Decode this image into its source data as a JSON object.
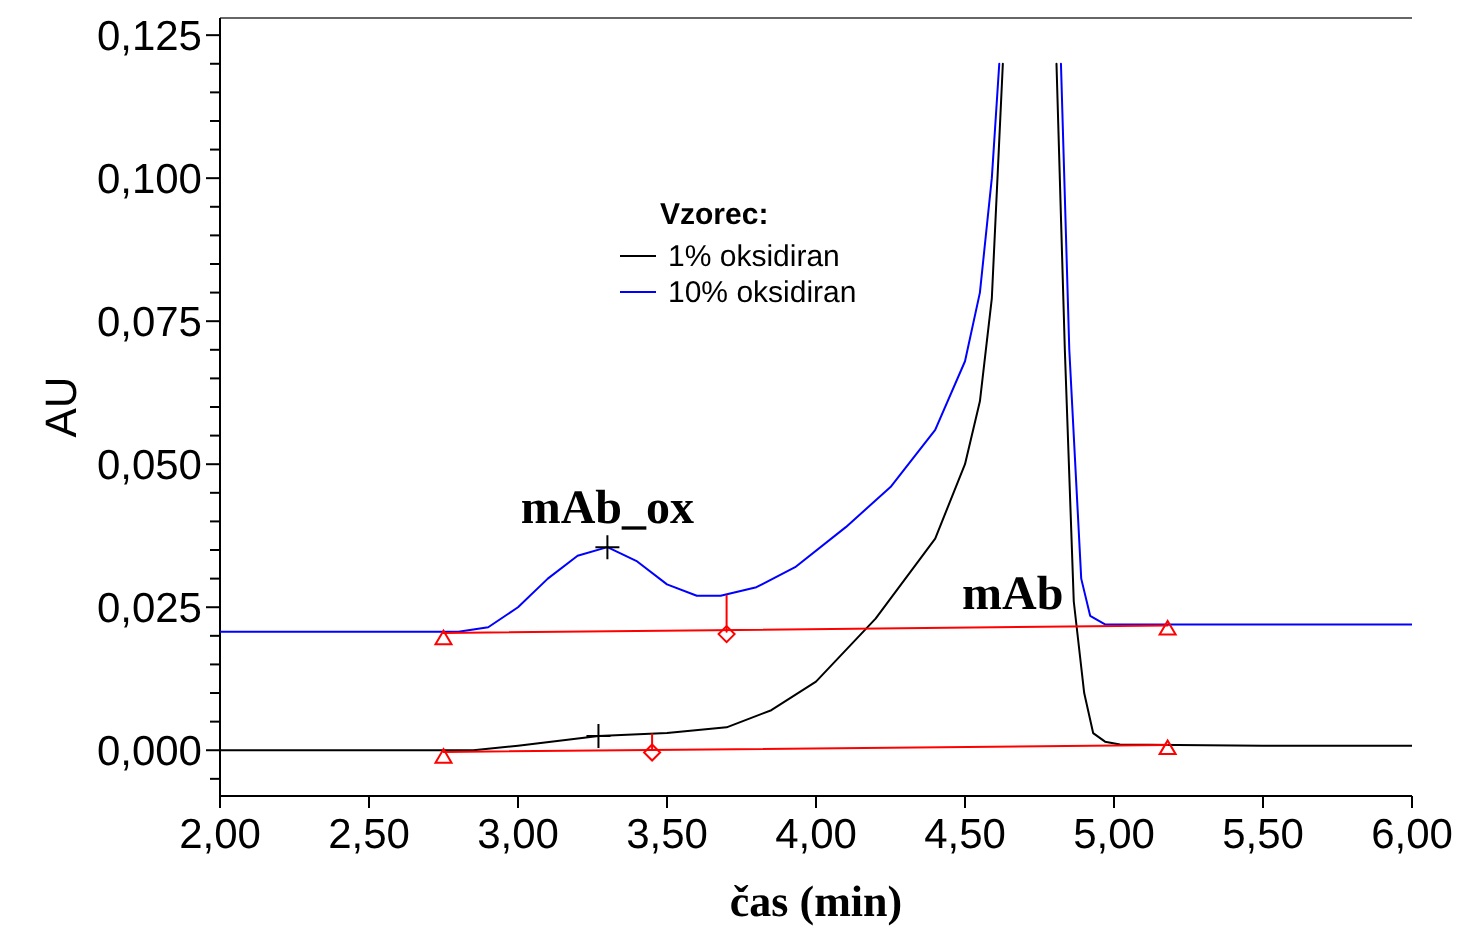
{
  "chart_data": {
    "type": "line",
    "xlabel": "čas (min)",
    "ylabel": "AU",
    "legend_title": "Vzorec:",
    "legend": "top",
    "grid": false,
    "marker": "none",
    "line_style": "solid",
    "xlim": [
      2.0,
      6.0
    ],
    "ylim": [
      -0.008,
      0.128
    ],
    "xticks": [
      {
        "value": 2.0,
        "label": "2,00"
      },
      {
        "value": 2.5,
        "label": "2,50"
      },
      {
        "value": 3.0,
        "label": "3,00"
      },
      {
        "value": 3.5,
        "label": "3,50"
      },
      {
        "value": 4.0,
        "label": "4,00"
      },
      {
        "value": 4.5,
        "label": "4,50"
      },
      {
        "value": 5.0,
        "label": "5,00"
      },
      {
        "value": 5.5,
        "label": "5,50"
      },
      {
        "value": 6.0,
        "label": "6,00"
      }
    ],
    "yticks": [
      {
        "value": -0.005,
        "label": null
      },
      {
        "value": 0,
        "label": "0,000"
      },
      {
        "value": 0.005,
        "label": null
      },
      {
        "value": 0.01,
        "label": null
      },
      {
        "value": 0.015,
        "label": null
      },
      {
        "value": 0.02,
        "label": null
      },
      {
        "value": 0.025,
        "label": "0,025"
      },
      {
        "value": 0.03,
        "label": null
      },
      {
        "value": 0.035,
        "label": null
      },
      {
        "value": 0.04,
        "label": null
      },
      {
        "value": 0.045,
        "label": null
      },
      {
        "value": 0.05,
        "label": "0,050"
      },
      {
        "value": 0.055,
        "label": null
      },
      {
        "value": 0.06,
        "label": null
      },
      {
        "value": 0.065,
        "label": null
      },
      {
        "value": 0.07,
        "label": null
      },
      {
        "value": 0.075,
        "label": "0,075"
      },
      {
        "value": 0.08,
        "label": null
      },
      {
        "value": 0.085,
        "label": null
      },
      {
        "value": 0.09,
        "label": null
      },
      {
        "value": 0.095,
        "label": null
      },
      {
        "value": 0.1,
        "label": "0,100"
      },
      {
        "value": 0.105,
        "label": null
      },
      {
        "value": 0.11,
        "label": null
      },
      {
        "value": 0.115,
        "label": null
      },
      {
        "value": 0.12,
        "label": null
      },
      {
        "value": 0.125,
        "label": "0,125"
      }
    ],
    "annotations": [
      {
        "text": "mAb_ox",
        "x": 3.3,
        "y": 0.0355
      },
      {
        "text": "mAb",
        "x": 4.66,
        "y": 0.0205
      }
    ],
    "series": [
      {
        "name": "1% oksidiran",
        "color": "#000000",
        "x": [
          2.0,
          2.5,
          2.85,
          3.0,
          3.27,
          3.5,
          3.7,
          3.85,
          4.0,
          4.2,
          4.4,
          4.5,
          4.55,
          4.59,
          4.627,
          4.7,
          4.807,
          4.835,
          4.865,
          4.9,
          4.93,
          4.97,
          5.02,
          5.5,
          6.0
        ],
        "values": [
          0,
          0,
          0,
          0.0008,
          0.0025,
          0.003,
          0.004,
          0.007,
          0.012,
          0.023,
          0.037,
          0.05,
          0.061,
          0.079,
          0.12,
          null,
          0.12,
          0.07,
          0.026,
          0.01,
          0.003,
          0.0015,
          0.001,
          0.0008,
          0.0008
        ]
      },
      {
        "name": "10% oksidiran",
        "color": "#0000ff",
        "x": [
          2.0,
          2.5,
          2.8,
          2.9,
          3.0,
          3.1,
          3.2,
          3.3,
          3.4,
          3.5,
          3.6,
          3.68,
          3.8,
          3.93,
          4.1,
          4.25,
          4.4,
          4.5,
          4.55,
          4.59,
          4.615,
          4.7,
          4.822,
          4.85,
          4.89,
          4.92,
          4.97,
          5.3,
          6.0
        ],
        "values": [
          0.0207,
          0.0207,
          0.0207,
          0.0215,
          0.025,
          0.03,
          0.034,
          0.0355,
          0.033,
          0.029,
          0.027,
          0.027,
          0.0285,
          0.032,
          0.039,
          0.046,
          0.056,
          0.068,
          0.08,
          0.1,
          0.12,
          null,
          0.12,
          0.07,
          0.03,
          0.0235,
          0.022,
          0.022,
          0.022
        ]
      },
      {
        "color": "#ff0000",
        "x": [
          2.75,
          5.18
        ],
        "values": [
          0.0205,
          0.0218
        ]
      },
      {
        "color": "#ff0000",
        "x": [
          2.75,
          5.18
        ],
        "values": [
          -0.0003,
          0.0009
        ]
      },
      {
        "color": "#ff0000",
        "x": [
          3.7,
          3.7
        ],
        "values": [
          0.0207,
          0.027
        ]
      },
      {
        "color": "#ff0000",
        "x": [
          3.45,
          3.45
        ],
        "values": [
          0.0001,
          0.0028
        ]
      },
      {
        "type": "scatter",
        "color": "#ff0000",
        "marker": "triangle",
        "x": [
          2.75,
          5.18,
          2.75,
          5.18
        ],
        "values": [
          0.0195,
          0.0212,
          -0.0012,
          0.0003
        ]
      },
      {
        "type": "scatter",
        "color": "#ff0000",
        "marker": "diamond",
        "x": [
          3.7,
          3.45
        ],
        "values": [
          0.0203,
          -0.0004
        ]
      },
      {
        "type": "scatter",
        "color": "#000000",
        "marker": "cross",
        "x": [
          3.3,
          3.27
        ],
        "values": [
          0.0355,
          0.0025
        ]
      }
    ]
  }
}
